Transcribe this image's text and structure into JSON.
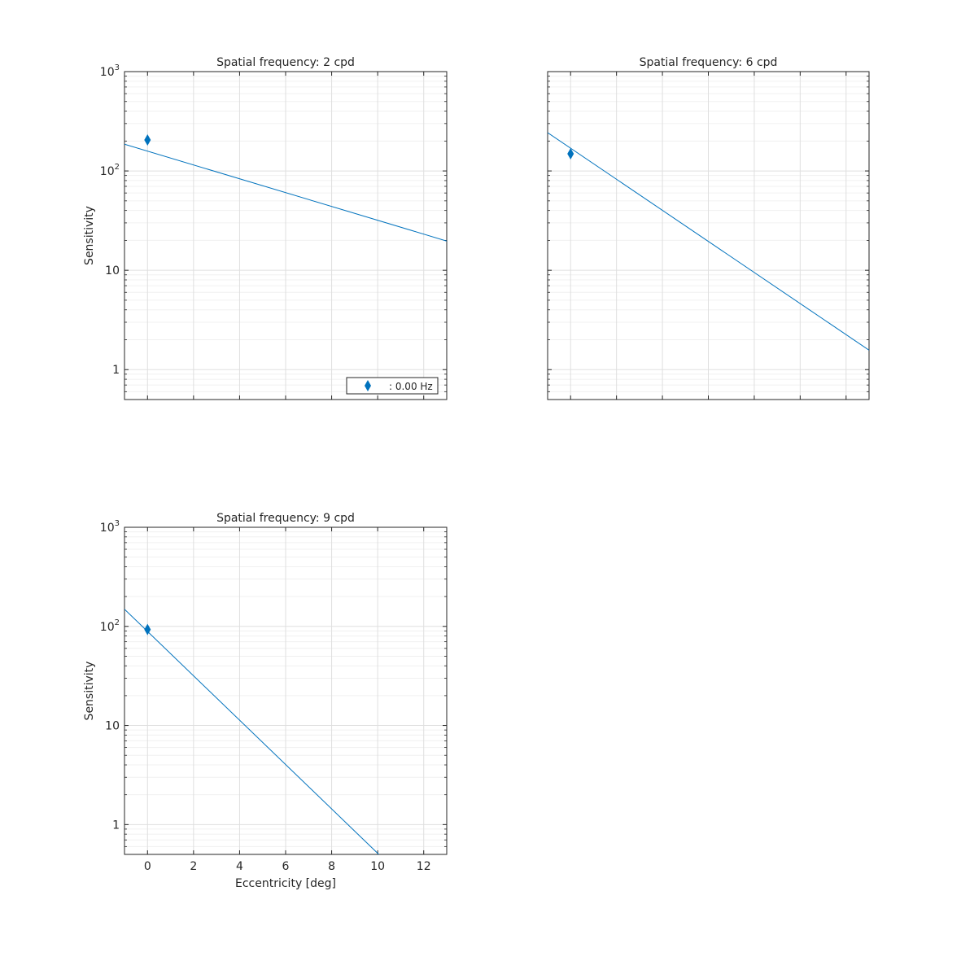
{
  "colors": {
    "series": "#0072BD",
    "grid": "#dfdfdf",
    "axis": "#262626"
  },
  "legend": {
    "label": ": 0.00 Hz",
    "marker": "diamond",
    "location": "bottom-right"
  },
  "chart_data": [
    {
      "type": "scatter+line",
      "title": "Spatial frequency: 2 cpd",
      "ylabel": "Sensitivity",
      "xlabel": "",
      "xlim": [
        -1,
        13
      ],
      "ylim": [
        0.5,
        1000
      ],
      "yscale": "log",
      "grid": true,
      "show_xticklabels": false,
      "show_yticklabels": true,
      "show_legend": true,
      "xticks": [
        0,
        2,
        4,
        6,
        8,
        10,
        12
      ],
      "yticks": [
        {
          "v": 1,
          "label": "1"
        },
        {
          "v": 10,
          "label": "10"
        },
        {
          "v": 100,
          "label": "10",
          "sup": "2"
        },
        {
          "v": 1000,
          "label": "10",
          "sup": "3"
        }
      ],
      "points": [
        {
          "x": 0,
          "y": 205
        }
      ],
      "line": [
        {
          "x": -1,
          "y": 186
        },
        {
          "x": 13,
          "y": 19.7
        }
      ]
    },
    {
      "type": "scatter+line",
      "title": "Spatial frequency: 6 cpd",
      "ylabel": "",
      "xlabel": "",
      "xlim": [
        -1,
        13
      ],
      "ylim": [
        0.5,
        1000
      ],
      "yscale": "log",
      "grid": true,
      "show_xticklabels": false,
      "show_yticklabels": false,
      "show_legend": false,
      "xticks": [
        0,
        2,
        4,
        6,
        8,
        10,
        12
      ],
      "yticks": [
        {
          "v": 1,
          "label": "1"
        },
        {
          "v": 10,
          "label": "10"
        },
        {
          "v": 100,
          "label": "10",
          "sup": "2"
        },
        {
          "v": 1000,
          "label": "10",
          "sup": "3"
        }
      ],
      "points": [
        {
          "x": 0,
          "y": 149
        }
      ],
      "line": [
        {
          "x": -1,
          "y": 243
        },
        {
          "x": 13,
          "y": 1.57
        }
      ]
    },
    {
      "type": "scatter+line",
      "title": "Spatial frequency: 9 cpd",
      "ylabel": "Sensitivity",
      "xlabel": "Eccentricity [deg]",
      "xlim": [
        -1,
        13
      ],
      "ylim": [
        0.5,
        1000
      ],
      "yscale": "log",
      "grid": true,
      "show_xticklabels": true,
      "show_yticklabels": true,
      "show_legend": false,
      "xticks": [
        0,
        2,
        4,
        6,
        8,
        10,
        12
      ],
      "yticks": [
        {
          "v": 1,
          "label": "1"
        },
        {
          "v": 10,
          "label": "10"
        },
        {
          "v": 100,
          "label": "10",
          "sup": "2"
        },
        {
          "v": 1000,
          "label": "10",
          "sup": "3"
        }
      ],
      "points": [
        {
          "x": 0,
          "y": 93
        }
      ],
      "line": [
        {
          "x": -1,
          "y": 149
        },
        {
          "x": 10.05,
          "y": 0.5
        }
      ]
    }
  ]
}
